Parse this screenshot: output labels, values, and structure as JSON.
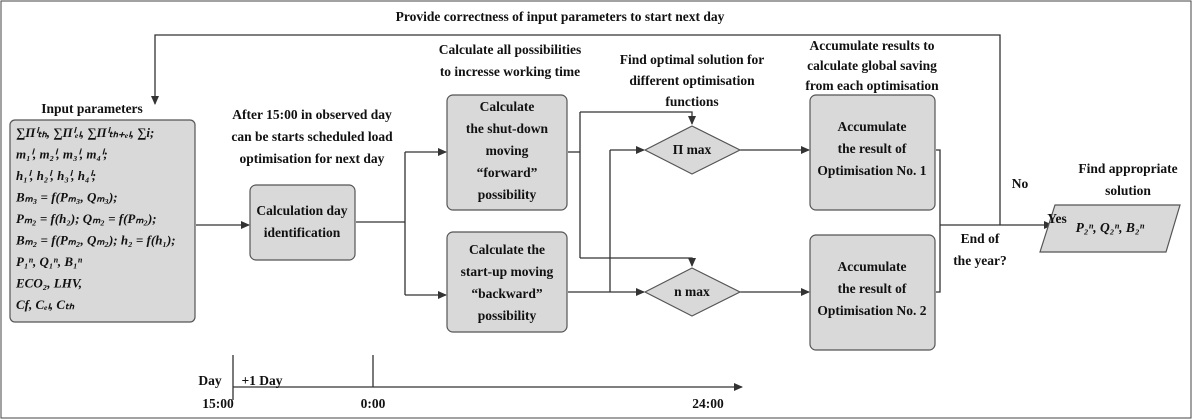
{
  "feedback_label": "Provide correctness of input parameters to start next day",
  "input": {
    "label": "Input parameters",
    "lines": [
      "∑Πⁱₜₕ, ∑Πⁱₑₗ, ∑Πⁱₜₕ₊ₑₗ, ∑i;",
      "m₁ⁱ, m₂ⁱ, m₃ⁱ, m₄ⁱ;",
      "h₁ⁱ, h₂ⁱ, h₃ⁱ, h₄ⁱ;",
      "Bₘ₃ = f(Pₘ₃, Qₘ₃);",
      "Pₘ₂ = f(h₂); Qₘ₂ = f(Pₘ₂);",
      "Bₘ₂ = f(Pₘ₂, Qₘ₂); h₂ = f(h₁);",
      "P₁ⁿ, Q₁ⁿ, B₁ⁿ",
      "ECO₂, LHV,",
      "Cf, Cₑₗ, Cₜₕ"
    ]
  },
  "notes": {
    "schedule": [
      "After 15:00 in observed day",
      "can be starts scheduled load",
      "optimisation for next day"
    ],
    "possibilities": [
      "Calculate all possibilities",
      "to incresse working time"
    ],
    "optimal": [
      "Find optimal solution for",
      "different optimisation",
      "functions"
    ],
    "accumulate": [
      "Accumulate results to",
      "calculate global saving",
      "from each optimisation"
    ],
    "appropriate": [
      "Find appropriate",
      "solution"
    ]
  },
  "nodes": {
    "day_identification": [
      "Calculation day",
      "identification"
    ],
    "shut_down": [
      "Calculate",
      "the shut-down",
      "moving",
      "“forward”",
      "possibility"
    ],
    "start_up": [
      "Calculate the",
      "start-up moving",
      "“backward”",
      "possibility"
    ],
    "pi_max": "Π max",
    "n_max": "n max",
    "result_1": [
      "Accumulate",
      "the result of",
      "Optimisation No. 1"
    ],
    "result_2": [
      "Accumulate",
      "the result of",
      "Optimisation No. 2"
    ],
    "end_of_year": [
      "End of",
      "the year?"
    ],
    "no": "No",
    "yes": "Yes",
    "output": "P₂ⁿ, Q₂ⁿ, B₂ⁿ"
  },
  "timeline": {
    "day": "Day",
    "next_day": "+1 Day",
    "t1": "15:00",
    "t2": "0:00",
    "t3": "24:00"
  }
}
